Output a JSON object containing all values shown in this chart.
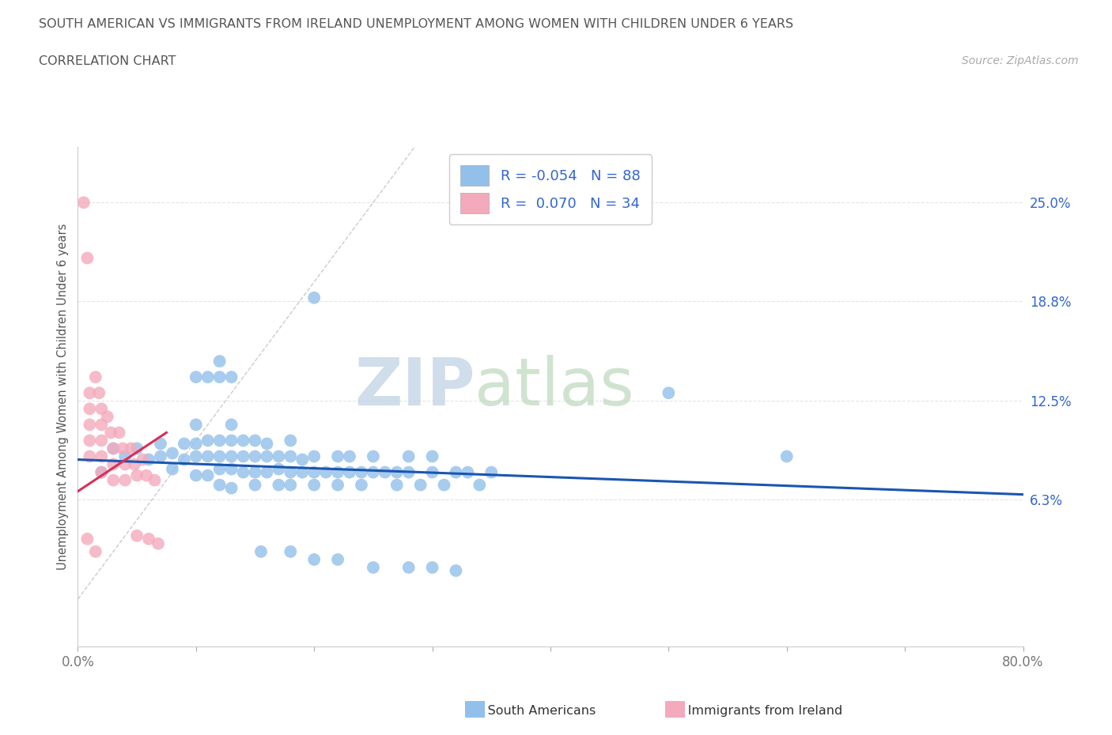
{
  "title": "SOUTH AMERICAN VS IMMIGRANTS FROM IRELAND UNEMPLOYMENT AMONG WOMEN WITH CHILDREN UNDER 6 YEARS",
  "subtitle": "CORRELATION CHART",
  "source": "Source: ZipAtlas.com",
  "ylabel": "Unemployment Among Women with Children Under 6 years",
  "xmin": 0.0,
  "xmax": 0.8,
  "ymin": -0.03,
  "ymax": 0.285,
  "yticks": [
    0.063,
    0.125,
    0.188,
    0.25
  ],
  "ytick_labels": [
    "6.3%",
    "12.5%",
    "18.8%",
    "25.0%"
  ],
  "xtick_vals": [
    0.0,
    0.1,
    0.2,
    0.3,
    0.4,
    0.5,
    0.6,
    0.7,
    0.8
  ],
  "blue_color": "#92C0EA",
  "pink_color": "#F4AABC",
  "trend_blue": "#1A56B0",
  "trend_pink": "#D83055",
  "diag_color": "#CCCCCC",
  "legend_R_blue": "-0.054",
  "legend_N_blue": "88",
  "legend_R_pink": "0.070",
  "legend_N_pink": "34",
  "blue_scatter_x": [
    0.02,
    0.03,
    0.04,
    0.05,
    0.06,
    0.07,
    0.07,
    0.08,
    0.08,
    0.09,
    0.09,
    0.1,
    0.1,
    0.1,
    0.1,
    0.11,
    0.11,
    0.11,
    0.12,
    0.12,
    0.12,
    0.12,
    0.13,
    0.13,
    0.13,
    0.13,
    0.13,
    0.14,
    0.14,
    0.14,
    0.15,
    0.15,
    0.15,
    0.15,
    0.16,
    0.16,
    0.16,
    0.17,
    0.17,
    0.17,
    0.18,
    0.18,
    0.18,
    0.18,
    0.19,
    0.19,
    0.2,
    0.2,
    0.2,
    0.21,
    0.22,
    0.22,
    0.22,
    0.23,
    0.23,
    0.24,
    0.24,
    0.25,
    0.25,
    0.26,
    0.27,
    0.27,
    0.28,
    0.28,
    0.29,
    0.3,
    0.3,
    0.31,
    0.32,
    0.33,
    0.34,
    0.35,
    0.2,
    0.1,
    0.11,
    0.12,
    0.12,
    0.13,
    0.6,
    0.5,
    0.155,
    0.18,
    0.2,
    0.22,
    0.25,
    0.28,
    0.3,
    0.32
  ],
  "blue_scatter_y": [
    0.08,
    0.095,
    0.09,
    0.095,
    0.088,
    0.09,
    0.098,
    0.082,
    0.092,
    0.088,
    0.098,
    0.078,
    0.09,
    0.098,
    0.11,
    0.078,
    0.09,
    0.1,
    0.072,
    0.082,
    0.09,
    0.1,
    0.07,
    0.082,
    0.09,
    0.1,
    0.11,
    0.08,
    0.09,
    0.1,
    0.072,
    0.08,
    0.09,
    0.1,
    0.08,
    0.09,
    0.098,
    0.072,
    0.082,
    0.09,
    0.072,
    0.08,
    0.09,
    0.1,
    0.08,
    0.088,
    0.072,
    0.08,
    0.09,
    0.08,
    0.072,
    0.08,
    0.09,
    0.08,
    0.09,
    0.072,
    0.08,
    0.08,
    0.09,
    0.08,
    0.072,
    0.08,
    0.08,
    0.09,
    0.072,
    0.08,
    0.09,
    0.072,
    0.08,
    0.08,
    0.072,
    0.08,
    0.19,
    0.14,
    0.14,
    0.14,
    0.15,
    0.14,
    0.09,
    0.13,
    0.03,
    0.03,
    0.025,
    0.025,
    0.02,
    0.02,
    0.02,
    0.018
  ],
  "pink_scatter_x": [
    0.005,
    0.008,
    0.01,
    0.01,
    0.01,
    0.01,
    0.01,
    0.015,
    0.018,
    0.02,
    0.02,
    0.02,
    0.02,
    0.02,
    0.025,
    0.028,
    0.03,
    0.03,
    0.03,
    0.035,
    0.038,
    0.04,
    0.04,
    0.045,
    0.048,
    0.05,
    0.05,
    0.055,
    0.058,
    0.06,
    0.065,
    0.068,
    0.008,
    0.015
  ],
  "pink_scatter_y": [
    0.25,
    0.215,
    0.13,
    0.12,
    0.11,
    0.1,
    0.09,
    0.14,
    0.13,
    0.12,
    0.11,
    0.1,
    0.09,
    0.08,
    0.115,
    0.105,
    0.095,
    0.085,
    0.075,
    0.105,
    0.095,
    0.085,
    0.075,
    0.095,
    0.085,
    0.078,
    0.04,
    0.088,
    0.078,
    0.038,
    0.075,
    0.035,
    0.038,
    0.03
  ],
  "watermark_zip": "ZIP",
  "watermark_atlas": "atlas",
  "watermark_color_zip": "#B8CCE0",
  "watermark_color_atlas": "#B8D4B8",
  "background_color": "#FFFFFF",
  "grid_color": "#E5E5E5",
  "title_color": "#555555",
  "tick_color_y": "#3366CC",
  "tick_color_x": "#777777",
  "legend_text_color": "#3366CC",
  "ylabel_color": "#555555"
}
